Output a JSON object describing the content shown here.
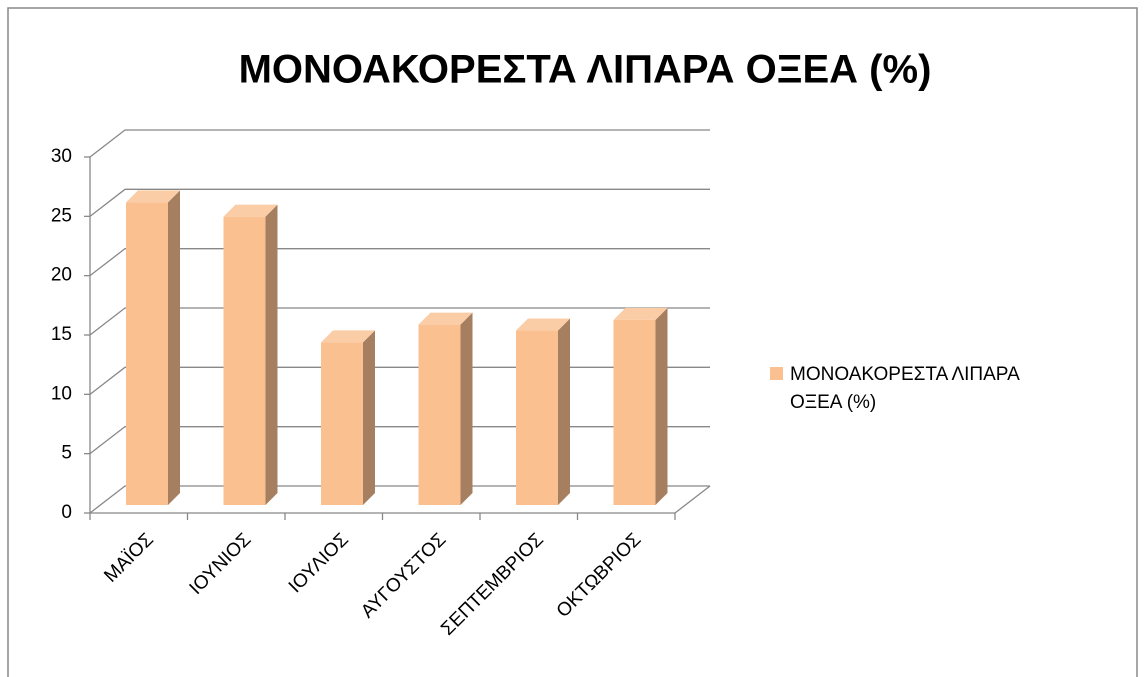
{
  "chart_data": {
    "type": "bar3d",
    "title": "ΜΟΝΟΑΚΟΡΕΣΤΑ ΛΙΠΑΡΑ ΟΞΕΑ (%)",
    "categories": [
      "ΜΑΪΟΣ",
      "ΙΟΥΝΙΟΣ",
      "ΙΟΥΛΙΟΣ",
      "ΑΥΓΟΥΣΤΟΣ",
      "ΣΕΠΤΕΜΒΡΙΟΣ",
      "ΟΚΤΩΒΡΙΟΣ"
    ],
    "series": [
      {
        "name": "ΜΟΝΟΑΚΟΡΕΣΤΑ ΛΙΠΑΡΑ ΟΞΕΑ (%)",
        "color": "#fac090",
        "values": [
          25.5,
          24.3,
          13.7,
          15.2,
          14.7,
          15.6
        ]
      }
    ],
    "ylim": [
      0,
      30
    ],
    "yticks": [
      0,
      5,
      10,
      15,
      20,
      25,
      30
    ],
    "grid": true,
    "legend": "right"
  }
}
